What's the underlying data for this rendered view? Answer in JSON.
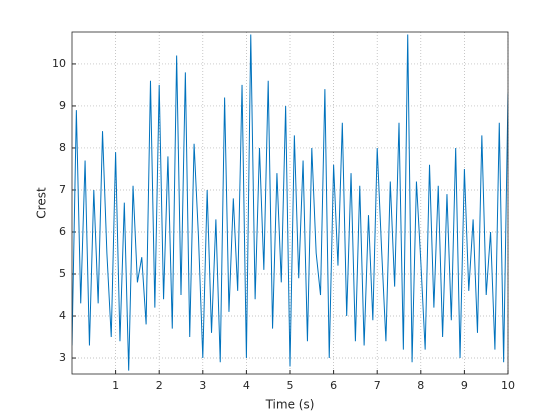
{
  "chart_data": {
    "type": "line",
    "xlabel": "Time (s)",
    "ylabel": "Crest",
    "x": [
      0,
      0.1,
      0.2,
      0.3,
      0.4,
      0.5,
      0.6,
      0.7,
      0.8,
      0.9,
      1,
      1.1,
      1.2,
      1.3,
      1.4,
      1.5,
      1.6,
      1.7,
      1.8,
      1.9,
      2,
      2.1,
      2.2,
      2.3,
      2.4,
      2.5,
      2.6,
      2.7,
      2.8,
      2.9,
      3,
      3.1,
      3.2,
      3.3,
      3.4,
      3.5,
      3.6,
      3.7,
      3.8,
      3.9,
      4,
      4.1,
      4.2,
      4.3,
      4.4,
      4.5,
      4.6,
      4.7,
      4.8,
      4.9,
      5,
      5.1,
      5.2,
      5.3,
      5.4,
      5.5,
      5.6,
      5.7,
      5.8,
      5.9,
      6,
      6.1,
      6.2,
      6.3,
      6.4,
      6.5,
      6.6,
      6.7,
      6.8,
      6.9,
      7,
      7.1,
      7.2,
      7.3,
      7.4,
      7.5,
      7.6,
      7.7,
      7.8,
      7.9,
      8,
      8.1,
      8.2,
      8.3,
      8.4,
      8.5,
      8.6,
      8.7,
      8.8,
      8.9,
      9,
      9.1,
      9.2,
      9.3,
      9.4,
      9.5,
      9.6,
      9.7,
      9.8,
      9.9,
      10
    ],
    "series": [
      {
        "color": "#0072bd",
        "values": [
          3.3,
          8.9,
          4.3,
          7.7,
          3.3,
          7.0,
          4.3,
          8.4,
          5.5,
          3.5,
          7.9,
          3.4,
          6.7,
          2.7,
          7.1,
          4.8,
          5.4,
          3.8,
          9.6,
          4.2,
          9.5,
          4.4,
          7.8,
          3.7,
          10.2,
          4.5,
          9.8,
          3.5,
          8.1,
          5.9,
          3.0,
          7.0,
          3.6,
          6.3,
          2.9,
          9.2,
          4.1,
          6.8,
          4.6,
          9.5,
          3.0,
          10.7,
          4.4,
          8.0,
          5.1,
          9.6,
          3.7,
          7.4,
          4.8,
          9.0,
          2.8,
          8.3,
          4.9,
          7.7,
          3.4,
          8.0,
          5.5,
          4.5,
          9.4,
          3.0,
          7.6,
          5.2,
          8.6,
          4.0,
          7.4,
          3.4,
          7.1,
          3.3,
          6.4,
          3.9,
          8.0,
          5.6,
          3.4,
          7.2,
          4.7,
          8.6,
          3.2,
          10.7,
          2.9,
          7.2,
          5.3,
          3.2,
          7.6,
          4.2,
          7.1,
          3.5,
          6.9,
          3.9,
          8.0,
          3.0,
          7.5,
          4.6,
          6.3,
          3.6,
          8.3,
          4.5,
          6.0,
          3.2,
          8.6,
          2.9,
          9.3
        ]
      }
    ],
    "xlim": [
      0,
      10
    ],
    "ylim": [
      2.62,
      10.76
    ],
    "xticks": [
      1,
      2,
      3,
      4,
      5,
      6,
      7,
      8,
      9,
      10
    ],
    "yticks": [
      3,
      4,
      5,
      6,
      7,
      8,
      9,
      10
    ],
    "grid": true
  }
}
